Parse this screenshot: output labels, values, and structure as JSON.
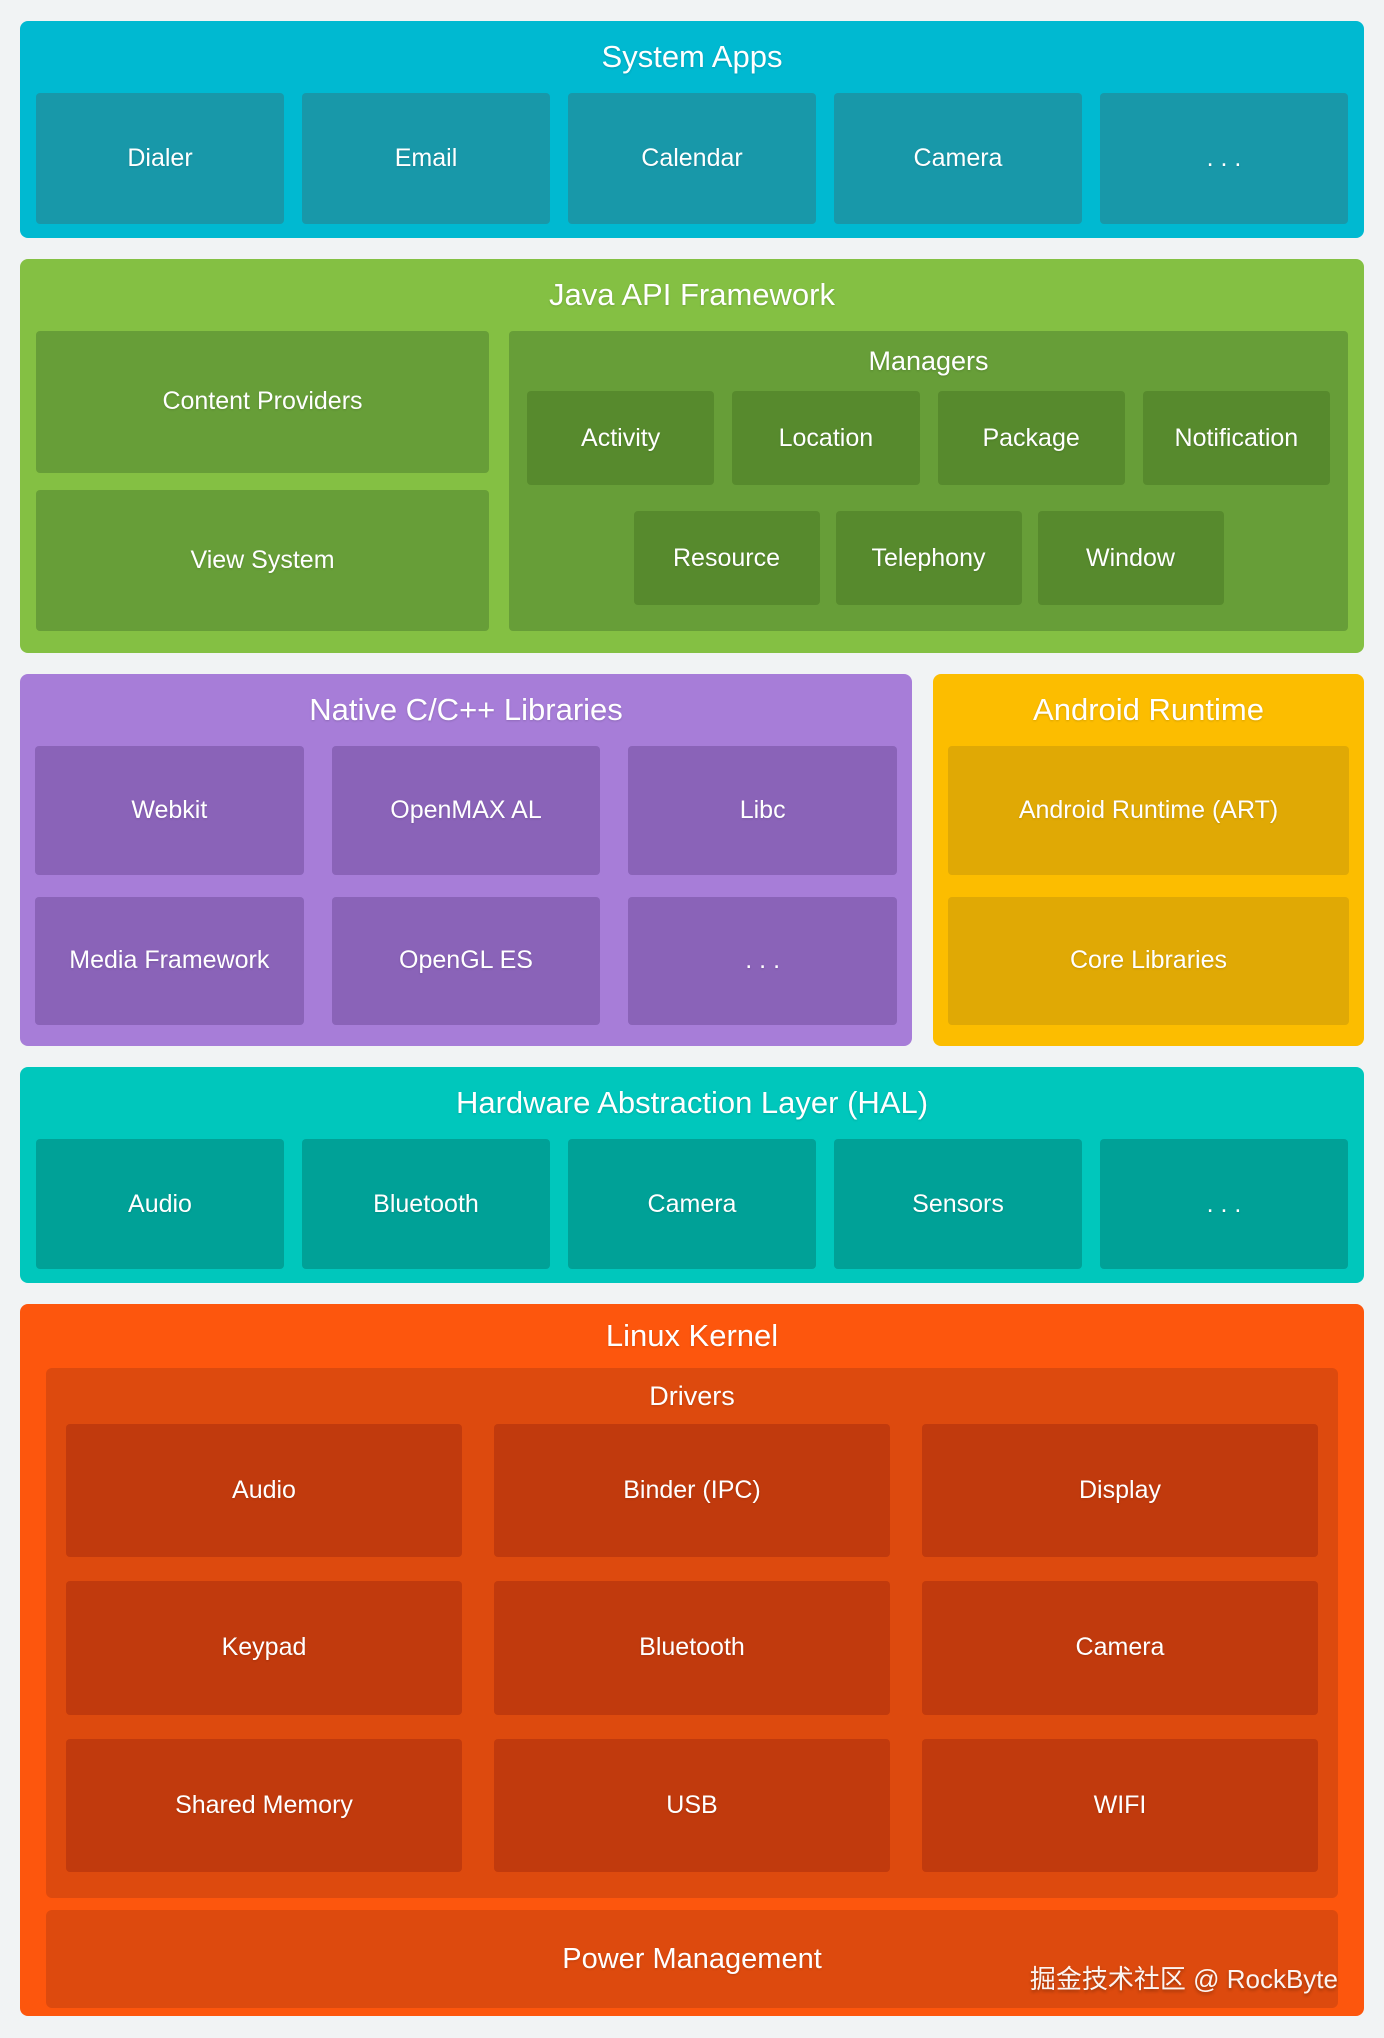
{
  "colors": {
    "page-bg": "#F1F3F4",
    "cyan": "#00B9D1",
    "cyan-dark": "#1898A9",
    "green": "#84C043",
    "green-mid": "#679E38",
    "green-dark": "#578A2D",
    "purple": "#A77DD8",
    "purple-dark": "#8A63B8",
    "amber": "#FCBD00",
    "amber-dark": "#E0A905",
    "teal": "#00C7BC",
    "teal-dark": "#00A197",
    "orange": "#FD560D",
    "orange-mid": "#DD4A0E",
    "orange-dark": "#C13A0D",
    "text": "#FFFFFF"
  },
  "system_apps": {
    "title": "System Apps",
    "items": [
      "Dialer",
      "Email",
      "Calendar",
      "Camera",
      ". . ."
    ]
  },
  "java_api": {
    "title": "Java API Framework",
    "left_items": [
      "Content Providers",
      "View System"
    ],
    "managers": {
      "title": "Managers",
      "row1": [
        "Activity",
        "Location",
        "Package",
        "Notification"
      ],
      "row2": [
        "Resource",
        "Telephony",
        "Window"
      ]
    }
  },
  "native_libs": {
    "title": "Native C/C++ Libraries",
    "items": [
      "Webkit",
      "OpenMAX AL",
      "Libc",
      "Media Framework",
      "OpenGL ES",
      ". . ."
    ]
  },
  "android_runtime": {
    "title": "Android Runtime",
    "items": [
      "Android Runtime (ART)",
      "Core Libraries"
    ]
  },
  "hal": {
    "title": "Hardware Abstraction Layer (HAL)",
    "items": [
      "Audio",
      "Bluetooth",
      "Camera",
      "Sensors",
      ". . ."
    ]
  },
  "linux_kernel": {
    "title": "Linux Kernel",
    "drivers": {
      "title": "Drivers",
      "items": [
        "Audio",
        "Binder (IPC)",
        "Display",
        "Keypad",
        "Bluetooth",
        "Camera",
        "Shared Memory",
        "USB",
        "WIFI"
      ]
    },
    "power_label": "Power Management"
  },
  "watermark": "掘金技术社区 @ RockByte"
}
